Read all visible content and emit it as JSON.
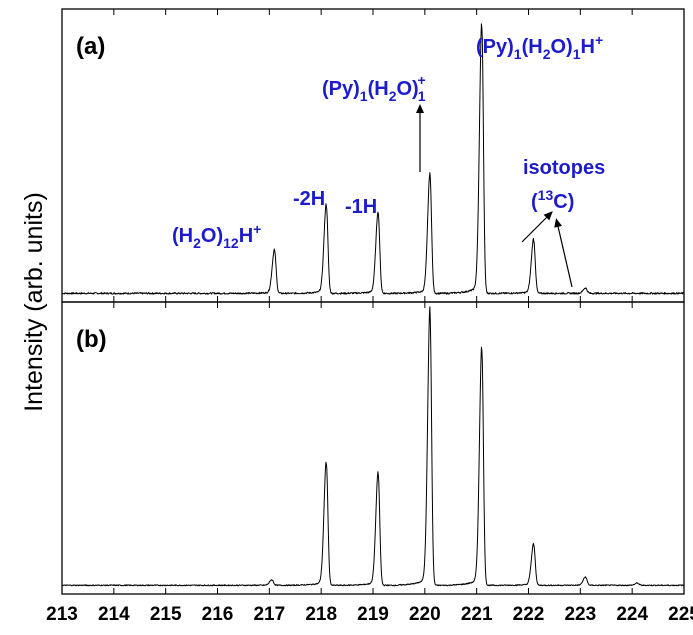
{
  "chart_data": {
    "type": "line",
    "ylabel": "Intensity (arb. units)",
    "xlabel": "",
    "xlim": [
      213,
      225
    ],
    "x_ticks": [
      "213",
      "214",
      "215",
      "216",
      "217",
      "218",
      "219",
      "220",
      "221",
      "222",
      "223",
      "224",
      "225"
    ],
    "grid": false,
    "legend": "none",
    "panels": [
      {
        "label": "(a)",
        "baseline": 0.01,
        "noise": 0.006,
        "peaks": [
          {
            "x": 217.1,
            "height": 0.16
          },
          {
            "x": 218.1,
            "height": 0.33
          },
          {
            "x": 219.1,
            "height": 0.3
          },
          {
            "x": 220.1,
            "height": 0.44
          },
          {
            "x": 221.1,
            "height": 1.0
          },
          {
            "x": 222.1,
            "height": 0.2
          },
          {
            "x": 223.1,
            "height": 0.02
          }
        ],
        "annotations": [
          {
            "base": "(H",
            "sub1": "2",
            "mid": "O)",
            "sub2": "12",
            "end": "H",
            "sup": "+"
          },
          {
            "text": "-2H"
          },
          {
            "text": "-1H"
          },
          {
            "base": "(Py)",
            "sub1": "1",
            "mid": "(H",
            "sub2": "2",
            "end": "O)",
            "sub3": "1",
            "sup": "+"
          },
          {
            "base": "(Py)",
            "sub1": "1",
            "mid": "(H",
            "sub2": "2",
            "end": "O)",
            "sub3": "1",
            "end2": "H",
            "sup": "+"
          },
          {
            "text": "isotopes"
          },
          {
            "pre": "(",
            "sup": "13",
            "post": "C)"
          }
        ]
      },
      {
        "label": "(b)",
        "baseline": 0.01,
        "noise": 0.004,
        "peaks": [
          {
            "x": 217.05,
            "height": 0.02
          },
          {
            "x": 218.1,
            "height": 0.45
          },
          {
            "x": 219.1,
            "height": 0.41
          },
          {
            "x": 220.1,
            "height": 1.0
          },
          {
            "x": 221.1,
            "height": 0.87
          },
          {
            "x": 222.1,
            "height": 0.15
          },
          {
            "x": 223.1,
            "height": 0.03
          },
          {
            "x": 224.1,
            "height": 0.008
          }
        ]
      }
    ]
  }
}
